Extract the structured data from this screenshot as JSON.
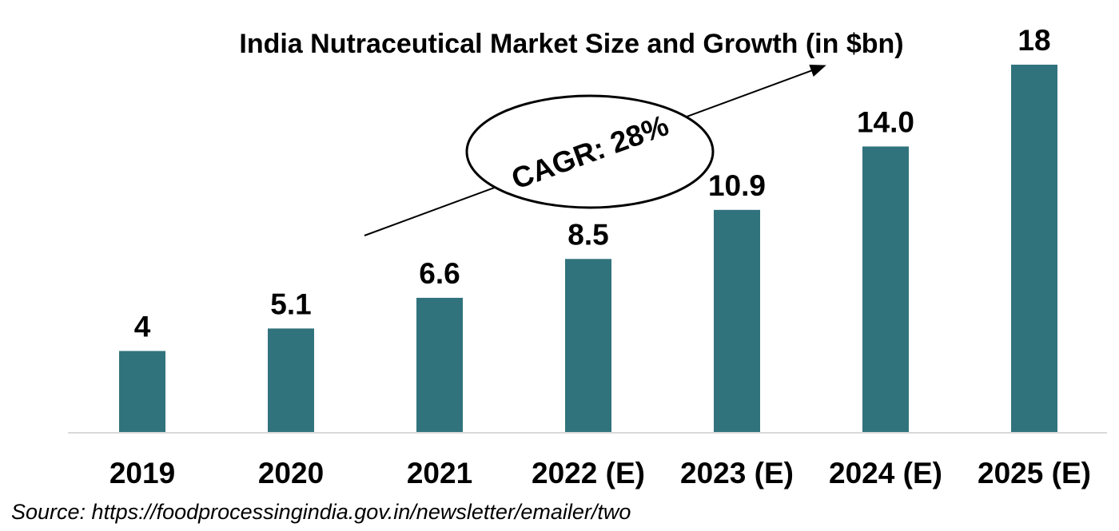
{
  "chart_data": {
    "type": "bar",
    "title": "India Nutraceutical Market Size and Growth (in $bn)",
    "categories": [
      "2019",
      "2020",
      "2021",
      "2022 (E)",
      "2023 (E)",
      "2024 (E)",
      "2025 (E)"
    ],
    "values": [
      4,
      5.1,
      6.6,
      8.5,
      10.9,
      14.0,
      18
    ],
    "value_labels": [
      "4",
      "5.1",
      "6.6",
      "8.5",
      "10.9",
      "14.0",
      "18"
    ],
    "xlabel": "",
    "ylabel": "",
    "ylim": [
      0,
      20
    ],
    "grid": false,
    "annotation": "CAGR: 28%",
    "source": "Source: https://foodprocessingindia.gov.in/newsletter/emailer/two",
    "colors": {
      "bar": "#31737d",
      "axis": "#d9d9d9",
      "text": "#000000"
    }
  }
}
